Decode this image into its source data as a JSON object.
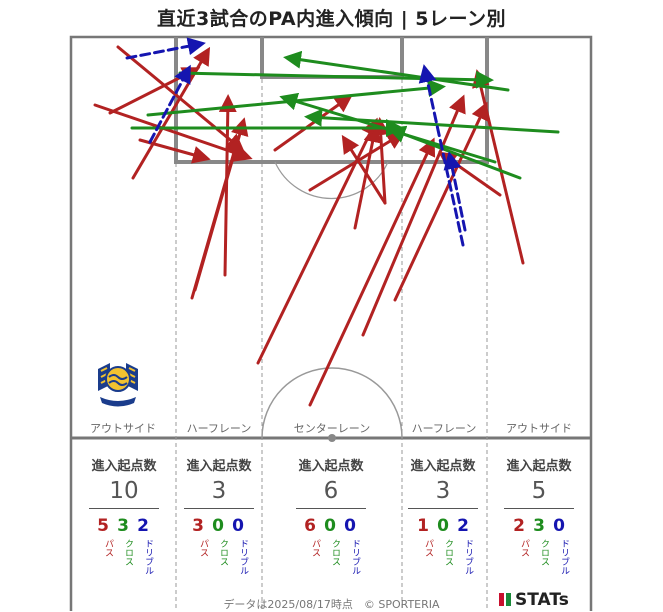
{
  "chart_data": {
    "type": "arrow-map",
    "title": "直近3試合のPA内進入傾向 | 5レーン別",
    "lanes": [
      {
        "name": "アウトサイド",
        "header": "進入起点数",
        "total": "10",
        "counts": [
          {
            "value": "5",
            "label": "パス",
            "color": "#b22222"
          },
          {
            "value": "3",
            "label": "クロス",
            "color": "#1e8c1e"
          },
          {
            "value": "2",
            "label": "ドリブル",
            "color": "#1515b0"
          }
        ]
      },
      {
        "name": "ハーフレーン",
        "header": "進入起点数",
        "total": "3",
        "counts": [
          {
            "value": "3",
            "label": "パス",
            "color": "#b22222"
          },
          {
            "value": "0",
            "label": "クロス",
            "color": "#1e8c1e"
          },
          {
            "value": "0",
            "label": "ドリブル",
            "color": "#1515b0"
          }
        ]
      },
      {
        "name": "センターレーン",
        "header": "進入起点数",
        "total": "6",
        "counts": [
          {
            "value": "6",
            "label": "パス",
            "color": "#b22222"
          },
          {
            "value": "0",
            "label": "クロス",
            "color": "#1e8c1e"
          },
          {
            "value": "0",
            "label": "ドリブル",
            "color": "#1515b0"
          }
        ]
      },
      {
        "name": "ハーフレーン",
        "header": "進入起点数",
        "total": "3",
        "counts": [
          {
            "value": "1",
            "label": "パス",
            "color": "#b22222"
          },
          {
            "value": "0",
            "label": "クロス",
            "color": "#1e8c1e"
          },
          {
            "value": "2",
            "label": "ドリブル",
            "color": "#1515b0"
          }
        ]
      },
      {
        "name": "アウトサイド",
        "header": "進入起点数",
        "total": "5",
        "counts": [
          {
            "value": "2",
            "label": "パス",
            "color": "#b22222"
          },
          {
            "value": "3",
            "label": "クロス",
            "color": "#1e8c1e"
          },
          {
            "value": "0",
            "label": "ドリブル",
            "color": "#1515b0"
          }
        ]
      }
    ],
    "colors": {
      "pass": "#b22222",
      "cross": "#1e8c1e",
      "dribble": "#1515b0"
    },
    "arrows": [
      {
        "kind": "pass",
        "from": [
          133,
          178
        ],
        "to": [
          207,
          52
        ]
      },
      {
        "kind": "pass",
        "from": [
          95,
          105
        ],
        "to": [
          247,
          157
        ]
      },
      {
        "kind": "pass",
        "from": [
          118,
          47
        ],
        "to": [
          240,
          148
        ]
      },
      {
        "kind": "pass",
        "from": [
          110,
          113
        ],
        "to": [
          195,
          70
        ]
      },
      {
        "kind": "pass",
        "from": [
          140,
          140
        ],
        "to": [
          205,
          158
        ]
      },
      {
        "kind": "pass",
        "from": [
          225,
          275
        ],
        "to": [
          228,
          100
        ]
      },
      {
        "kind": "pass",
        "from": [
          195,
          290
        ],
        "to": [
          243,
          123
        ]
      },
      {
        "kind": "pass",
        "from": [
          192,
          298
        ],
        "to": [
          237,
          142
        ]
      },
      {
        "kind": "pass",
        "from": [
          258,
          363
        ],
        "to": [
          375,
          123
        ]
      },
      {
        "kind": "pass",
        "from": [
          275,
          150
        ],
        "to": [
          348,
          98
        ]
      },
      {
        "kind": "pass",
        "from": [
          310,
          190
        ],
        "to": [
          400,
          135
        ]
      },
      {
        "kind": "pass",
        "from": [
          355,
          228
        ],
        "to": [
          375,
          130
        ]
      },
      {
        "kind": "pass",
        "from": [
          363,
          335
        ],
        "to": [
          462,
          100
        ]
      },
      {
        "kind": "pass",
        "from": [
          385,
          203
        ],
        "to": [
          345,
          140
        ]
      },
      {
        "kind": "pass",
        "from": [
          385,
          203
        ],
        "to": [
          380,
          123
        ]
      },
      {
        "kind": "pass",
        "from": [
          310,
          405
        ],
        "to": [
          432,
          143
        ]
      },
      {
        "kind": "pass",
        "from": [
          395,
          300
        ],
        "to": [
          485,
          107
        ]
      },
      {
        "kind": "pass",
        "from": [
          523,
          263
        ],
        "to": [
          478,
          75
        ]
      },
      {
        "kind": "pass",
        "from": [
          500,
          195
        ],
        "to": [
          443,
          155
        ]
      },
      {
        "kind": "cross",
        "from": [
          508,
          90
        ],
        "to": [
          289,
          58
        ]
      },
      {
        "kind": "cross",
        "from": [
          180,
          73
        ],
        "to": [
          488,
          80
        ]
      },
      {
        "kind": "cross",
        "from": [
          148,
          115
        ],
        "to": [
          440,
          87
        ]
      },
      {
        "kind": "cross",
        "from": [
          132,
          128
        ],
        "to": [
          398,
          128
        ]
      },
      {
        "kind": "cross",
        "from": [
          558,
          132
        ],
        "to": [
          310,
          117
        ]
      },
      {
        "kind": "cross",
        "from": [
          495,
          162
        ],
        "to": [
          285,
          98
        ]
      },
      {
        "kind": "cross",
        "from": [
          520,
          178
        ],
        "to": [
          393,
          130
        ]
      },
      {
        "kind": "dribble",
        "from": [
          127,
          58
        ],
        "to": [
          200,
          44
        ]
      },
      {
        "kind": "dribble",
        "from": [
          150,
          142
        ],
        "to": [
          188,
          70
        ]
      },
      {
        "kind": "dribble",
        "from": [
          463,
          245
        ],
        "to": [
          425,
          70
        ]
      },
      {
        "kind": "dribble",
        "from": [
          465,
          230
        ],
        "to": [
          450,
          157
        ]
      }
    ]
  },
  "footer": "データは2025/08/17時点　© SPORTERIA",
  "brand": "STATs"
}
